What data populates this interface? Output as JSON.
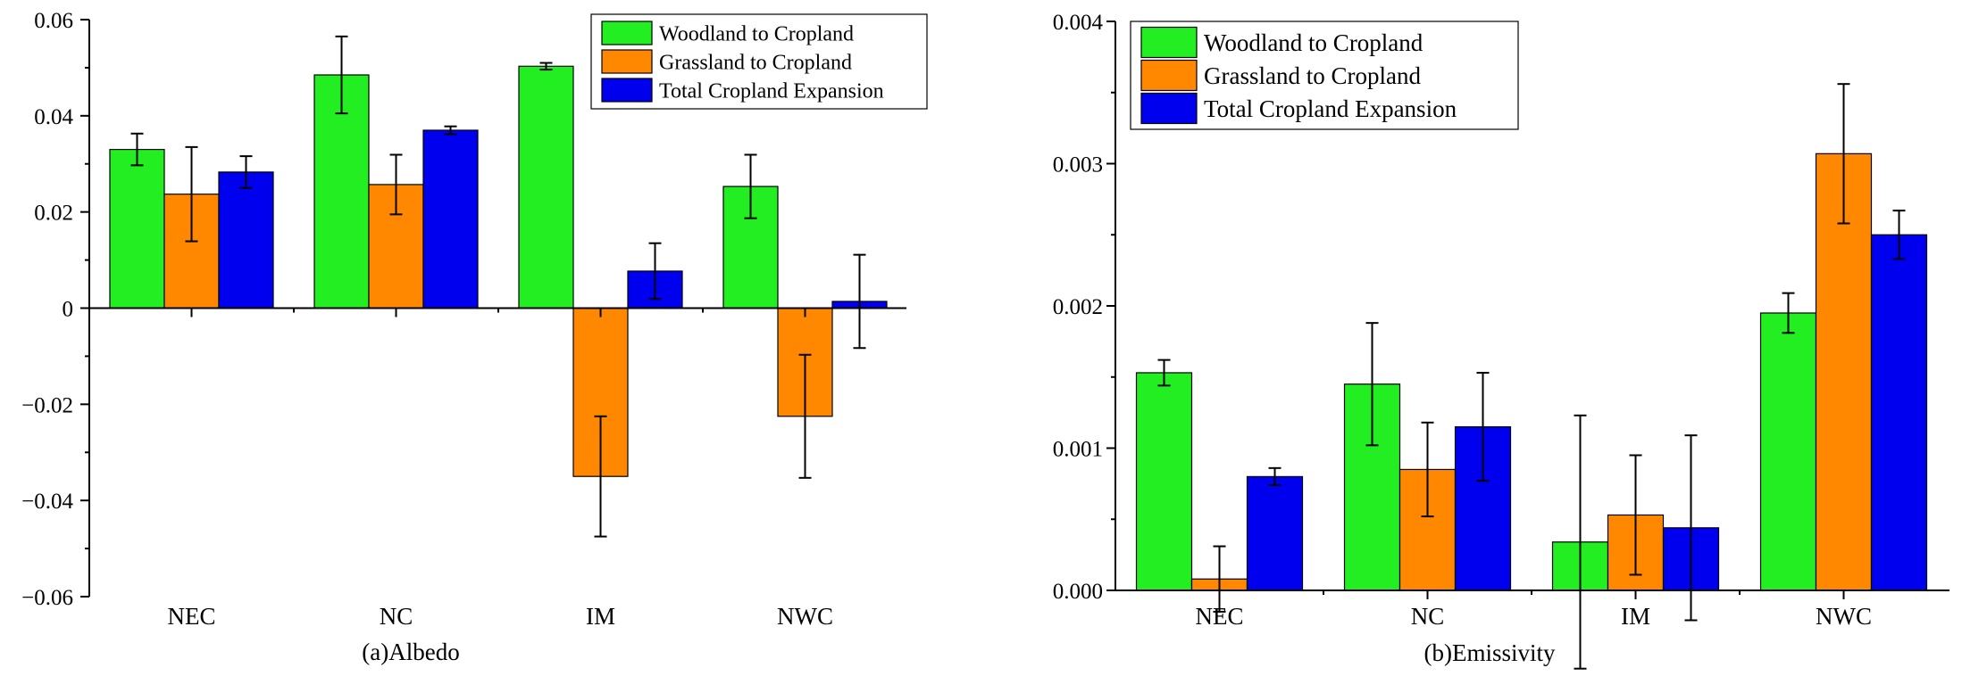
{
  "chart_data": [
    {
      "type": "bar",
      "title": "(a)Albedo",
      "xlabel": "(a)Albedo",
      "ylabel": "",
      "categories": [
        "NEC",
        "NC",
        "IM",
        "NWC"
      ],
      "ylim": [
        -0.06,
        0.06
      ],
      "yticks": [
        -0.06,
        -0.04,
        -0.02,
        0,
        0.02,
        0.04,
        0.06
      ],
      "ytick_labels": [
        "−0.06",
        "−0.04",
        "−0.02",
        "0",
        "0.02",
        "0.04",
        "0.06"
      ],
      "grid": false,
      "legend_position": "top-right",
      "series": [
        {
          "name": "Woodland to Cropland",
          "color": "#22ee22",
          "values": [
            0.033,
            0.0485,
            0.0503,
            0.0253
          ],
          "err": [
            0.0033,
            0.008,
            0.0007,
            0.0066
          ]
        },
        {
          "name": "Grassland to Cropland",
          "color": "#ff8800",
          "values": [
            0.0237,
            0.0257,
            -0.035,
            -0.0225
          ],
          "err": [
            0.0098,
            0.0062,
            0.0125,
            0.0128
          ]
        },
        {
          "name": "Total Cropland Expansion",
          "color": "#0000ee",
          "values": [
            0.0283,
            0.037,
            0.0077,
            0.0014
          ],
          "err": [
            0.0033,
            0.0008,
            0.0058,
            0.0097
          ]
        }
      ]
    },
    {
      "type": "bar",
      "title": "(b)Emissivity",
      "xlabel": "(b)Emissivity",
      "ylabel": "",
      "categories": [
        "NEC",
        "NC",
        "IM",
        "NWC"
      ],
      "ylim": [
        0,
        0.004
      ],
      "yticks": [
        0,
        0.001,
        0.002,
        0.003,
        0.004
      ],
      "ytick_labels": [
        "0.000",
        "0.001",
        "0.002",
        "0.003",
        "0.004"
      ],
      "grid": false,
      "legend_position": "top-left",
      "series": [
        {
          "name": "Woodland to Cropland",
          "color": "#22ee22",
          "values": [
            0.00153,
            0.00145,
            0.00034,
            0.00195
          ],
          "err": [
            9e-05,
            0.00043,
            0.00089,
            0.00014
          ]
        },
        {
          "name": "Grassland to Cropland",
          "color": "#ff8800",
          "values": [
            8e-05,
            0.00085,
            0.00053,
            0.00307
          ],
          "err": [
            0.00023,
            0.00033,
            0.00042,
            0.00049
          ]
        },
        {
          "name": "Total Cropland Expansion",
          "color": "#0000ee",
          "values": [
            0.0008,
            0.00115,
            0.00044,
            0.0025
          ],
          "err": [
            6e-05,
            0.00038,
            0.00065,
            0.00017
          ]
        }
      ]
    }
  ]
}
